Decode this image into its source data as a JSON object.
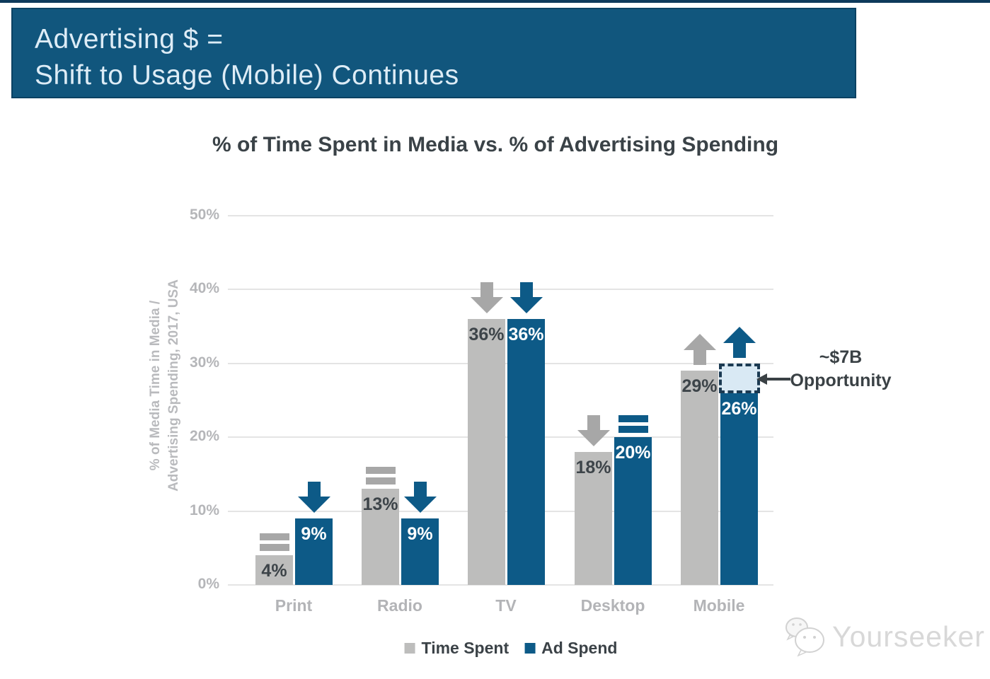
{
  "top_strip_color": "#0e3a5b",
  "header": {
    "line1": "Advertising $ =",
    "line2": "Shift to Usage (Mobile) Continues",
    "bg": "#11567d",
    "text_color": "#ddecf6"
  },
  "chart_data": {
    "type": "bar",
    "title": "% of Time Spent in Media vs. % of Advertising Spending",
    "ylabel_line1": "% of Media Time in Media /",
    "ylabel_line2": "Advertising Spending, 2017, USA",
    "categories": [
      "Print",
      "Radio",
      "TV",
      "Desktop",
      "Mobile"
    ],
    "series": [
      {
        "name": "Time Spent",
        "color": "#bdbdbc",
        "marker_color": "#a7a7a7",
        "values": [
          4,
          13,
          36,
          18,
          29
        ],
        "labels": [
          "4%",
          "13%",
          "36%",
          "18%",
          "29%"
        ],
        "trends": [
          "flat",
          "flat",
          "down",
          "down",
          "up"
        ]
      },
      {
        "name": "Ad Spend",
        "color": "#0d5a87",
        "marker_color": "#0d5a87",
        "values": [
          9,
          9,
          36,
          20,
          26
        ],
        "labels": [
          "9%",
          "9%",
          "36%",
          "20%",
          "26%"
        ],
        "trends": [
          "down",
          "down",
          "down",
          "flat",
          "up"
        ]
      }
    ],
    "yticks": [
      "0%",
      "10%",
      "20%",
      "30%",
      "40%",
      "50%"
    ],
    "ylim": [
      0,
      50
    ],
    "grid": true,
    "legend_position": "bottom",
    "annotation": {
      "line1": "~$7B",
      "line2": "Opportunity",
      "category": "Mobile",
      "series": "Ad Spend",
      "box_from_pct": 26,
      "box_to_pct": 30,
      "box_fill": "#d9e9f4",
      "box_border": "#1b3a52"
    }
  },
  "legend": {
    "items": [
      {
        "label": "Time Spent",
        "color": "#bdbdbc"
      },
      {
        "label": "Ad Spend",
        "color": "#0d5a87"
      }
    ]
  },
  "watermark": {
    "text": "Yourseeker"
  }
}
